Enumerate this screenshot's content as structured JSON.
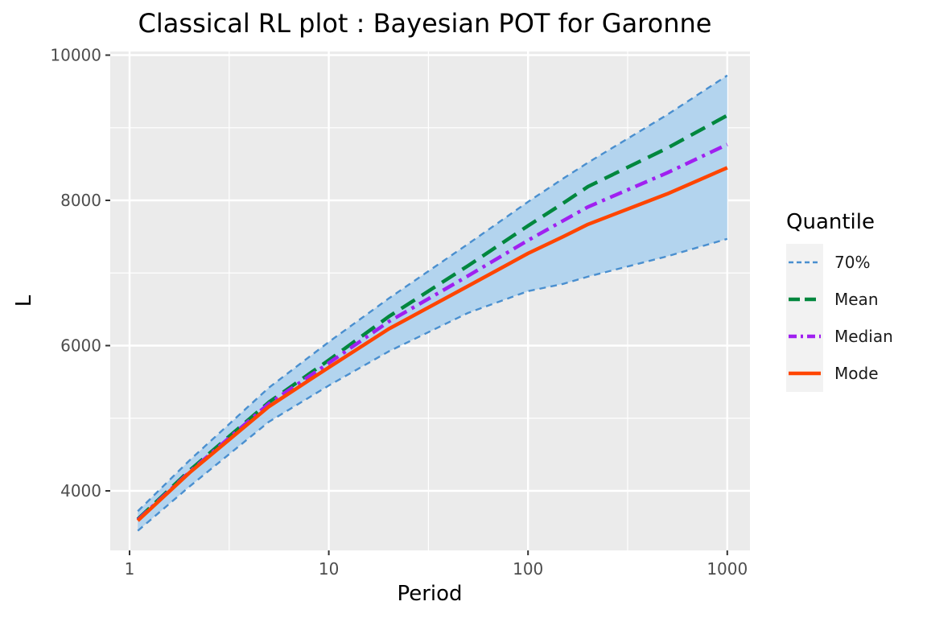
{
  "chart_data": {
    "type": "line",
    "title": "Classical RL plot : Bayesian POT for Garonne",
    "xlabel": "Period",
    "ylabel": "L",
    "x_scale": "log10",
    "xlim": [
      0.8,
      1300
    ],
    "ylim": [
      3180,
      10050
    ],
    "x_ticks": [
      1,
      10,
      100,
      1000
    ],
    "x_tick_labels": [
      "1",
      "10",
      "100",
      "1000"
    ],
    "y_ticks": [
      4000,
      6000,
      8000,
      10000
    ],
    "y_tick_labels": [
      "4000",
      "6000",
      "8000",
      "10000"
    ],
    "grid": true,
    "legend": {
      "title": "Quantile",
      "position": "right",
      "entries": [
        "70%",
        "Mean",
        "Median",
        "Mode"
      ]
    },
    "colors": {
      "panel_bg": "#ebebeb",
      "grid": "#ffffff",
      "band_fill": "#b3d4ee",
      "band_line": "#4a8fcf",
      "mean": "#00873e",
      "median": "#a020f0",
      "mode": "#ff4500"
    },
    "x": [
      1.1,
      2,
      5,
      10,
      20,
      50,
      100,
      150,
      200,
      500,
      1000
    ],
    "series": [
      {
        "name": "70%",
        "role": "upper",
        "values": [
          3720,
          4420,
          5420,
          6050,
          6650,
          7400,
          7980,
          8300,
          8520,
          9180,
          9720
        ]
      },
      {
        "name": "70%",
        "role": "lower",
        "values": [
          3450,
          4060,
          4950,
          5450,
          5920,
          6450,
          6750,
          6850,
          6950,
          7230,
          7470
        ]
      },
      {
        "name": "Mean",
        "values": [
          3610,
          4280,
          5220,
          5800,
          6400,
          7100,
          7650,
          7960,
          8190,
          8720,
          9170
        ]
      },
      {
        "name": "Median",
        "values": [
          3600,
          4260,
          5200,
          5760,
          6330,
          6960,
          7450,
          7720,
          7910,
          8380,
          8770
        ]
      },
      {
        "name": "Mode",
        "values": [
          3590,
          4250,
          5160,
          5700,
          6230,
          6820,
          7270,
          7500,
          7670,
          8090,
          8450
        ]
      }
    ]
  }
}
